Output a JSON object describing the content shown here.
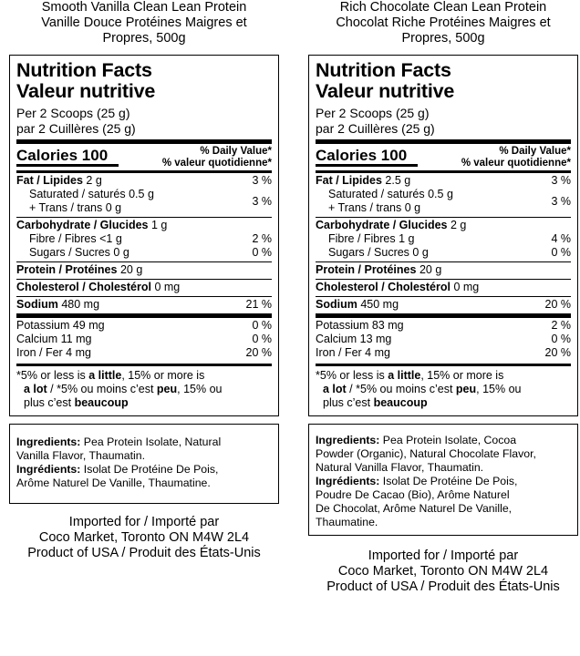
{
  "panels": [
    {
      "title_lines": [
        "Smooth Vanilla Clean Lean Protein",
        "Vanille Douce Protéines Maigres et",
        "Propres, 500g"
      ],
      "nf_en": "Nutrition Facts",
      "nf_fr": "Valeur nutritive",
      "serving_en": "Per 2 Scoops (25 g)",
      "serving_fr": "par 2 Cuillères (25 g)",
      "calories": "Calories 100",
      "dv_en": "% Daily Value",
      "dv_fr": "% valeur quotidienne",
      "fat_label": "Fat / Lipides",
      "fat_amount": "2 g",
      "fat_pct": "3 %",
      "saturated": "Saturated / saturés 0.5 g",
      "trans": "+ Trans / trans 0 g",
      "sat_trans_pct": "3 %",
      "carb_label": "Carbohydrate / Glucides",
      "carb_amount": "1 g",
      "fibre": "Fibre / Fibres <1 g",
      "fibre_pct": "2 %",
      "sugars": "Sugars / Sucres 0 g",
      "sugars_pct": "0 %",
      "protein_label": "Protein / Protéines",
      "protein_amount": "20 g",
      "chol_label": "Cholesterol / Cholestérol",
      "chol_amount": "0 mg",
      "sodium_label": "Sodium",
      "sodium_amount": "480 mg",
      "sodium_pct": "21 %",
      "potassium": "Potassium 49 mg",
      "potassium_pct": "0 %",
      "calcium": "Calcium 11 mg",
      "calcium_pct": "0 %",
      "iron": "Iron / Fer 4 mg",
      "iron_pct": "20 %",
      "foot": {
        "a": "*5% or less is ",
        "b": "a little",
        "c": ", 15% or more is",
        "d": "a lot",
        "e": " / *5% ou moins c’est ",
        "f": "peu",
        "g": ", 15% ou",
        "h": "plus c’est ",
        "i": "beaucoup"
      },
      "ing_en_label": "Ingredients:",
      "ing_en_lines": [
        " Pea Protein Isolate, Natural",
        "Vanilla Flavor, Thaumatin."
      ],
      "ing_fr_label": "Ingrédients:",
      "ing_fr_lines": [
        " Isolat De Protéine De Pois,",
        "Arôme Naturel De Vanille, Thaumatine."
      ],
      "importer_lines": [
        "Imported for / Importé par",
        "Coco Market, Toronto ON M4W 2L4",
        "Product of USA / Produit des États-Unis"
      ]
    },
    {
      "title_lines": [
        "Rich Chocolate Clean Lean Protein",
        "Chocolat Riche Protéines Maigres et",
        "Propres, 500g"
      ],
      "nf_en": "Nutrition Facts",
      "nf_fr": "Valeur nutritive",
      "serving_en": "Per 2 Scoops (25 g)",
      "serving_fr": "par 2 Cuillères (25 g)",
      "calories": "Calories 100",
      "dv_en": "% Daily Value",
      "dv_fr": "% valeur quotidienne",
      "fat_label": "Fat / Lipides",
      "fat_amount": "2.5 g",
      "fat_pct": "3 %",
      "saturated": "Saturated / saturés 0.5 g",
      "trans": "+ Trans / trans 0 g",
      "sat_trans_pct": "3 %",
      "carb_label": "Carbohydrate / Glucides",
      "carb_amount": "2 g",
      "fibre": "Fibre / Fibres 1 g",
      "fibre_pct": "4 %",
      "sugars": "Sugars / Sucres 0 g",
      "sugars_pct": "0 %",
      "protein_label": "Protein / Protéines",
      "protein_amount": "20 g",
      "chol_label": "Cholesterol / Cholestérol",
      "chol_amount": "0 mg",
      "sodium_label": "Sodium",
      "sodium_amount": "450 mg",
      "sodium_pct": "20 %",
      "potassium": "Potassium 83 mg",
      "potassium_pct": "2 %",
      "calcium": "Calcium 13 mg",
      "calcium_pct": "0 %",
      "iron": "Iron / Fer 4 mg",
      "iron_pct": "20 %",
      "foot": {
        "a": "*5% or less is ",
        "b": "a little",
        "c": ", 15% or more is",
        "d": "a lot",
        "e": " / *5% ou moins c’est ",
        "f": "peu",
        "g": ", 15% ou",
        "h": "plus c’est ",
        "i": "beaucoup"
      },
      "ing_en_label": "Ingredients:",
      "ing_en_lines": [
        " Pea Protein Isolate, Cocoa",
        "Powder (Organic), Natural Chocolate Flavor,",
        "Natural Vanilla Flavor, Thaumatin."
      ],
      "ing_fr_label": "Ingrédients:",
      "ing_fr_lines": [
        " Isolat De Protéine De Pois,",
        "Poudre De Cacao (Bio), Arôme Naturel",
        "De Chocolat, Arôme Naturel De Vanille,",
        "Thaumatine."
      ],
      "importer_lines": [
        "Imported for / Importé par",
        "Coco Market, Toronto ON M4W 2L4",
        "Product of USA / Produit des États-Unis"
      ]
    }
  ]
}
